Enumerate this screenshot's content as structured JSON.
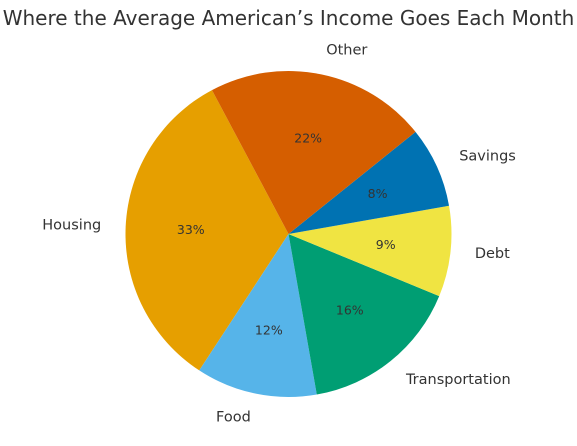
{
  "chart_data": {
    "type": "pie",
    "title": "Where the Average American’s Income Goes Each Month",
    "slices": [
      {
        "label": "Housing",
        "value": 33,
        "display": "33%",
        "color": "#E69F00"
      },
      {
        "label": "Food",
        "value": 12,
        "display": "12%",
        "color": "#56B4E9"
      },
      {
        "label": "Transportation",
        "value": 16,
        "display": "16%",
        "color": "#009E73"
      },
      {
        "label": "Debt",
        "value": 9,
        "display": "9%",
        "color": "#F0E442"
      },
      {
        "label": "Savings",
        "value": 8,
        "display": "8%",
        "color": "#0072B2"
      },
      {
        "label": "Other",
        "value": 22,
        "display": "22%",
        "color": "#D55E00"
      }
    ],
    "legend": "none"
  }
}
